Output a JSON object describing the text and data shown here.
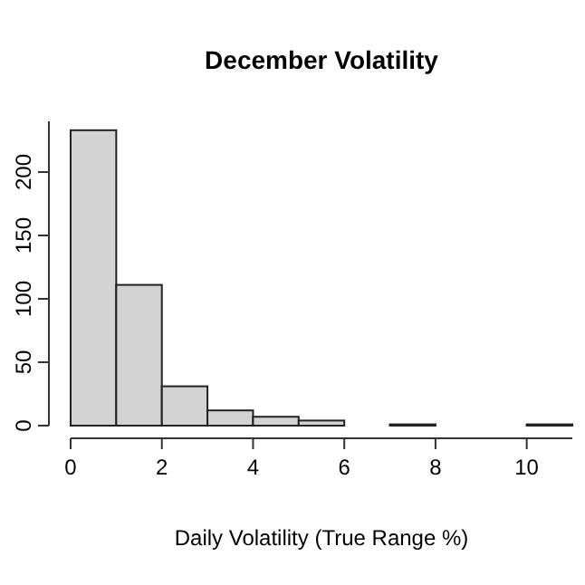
{
  "chart_data": {
    "type": "histogram",
    "title": "December Volatility",
    "xlabel": "Daily Volatility (True Range %)",
    "bins": [
      0,
      1,
      2,
      3,
      4,
      5,
      6,
      7,
      8,
      9,
      10,
      11
    ],
    "values": [
      233,
      111,
      31,
      12,
      7,
      4,
      0,
      1,
      0,
      0,
      1
    ],
    "color": "#d3d3d3",
    "xlim": [
      0,
      11
    ],
    "xticks": [
      0,
      2,
      4,
      6,
      8,
      10
    ],
    "ylim": [
      0,
      240
    ],
    "yticks": [
      0,
      50,
      100,
      150,
      200
    ],
    "grid": false
  }
}
